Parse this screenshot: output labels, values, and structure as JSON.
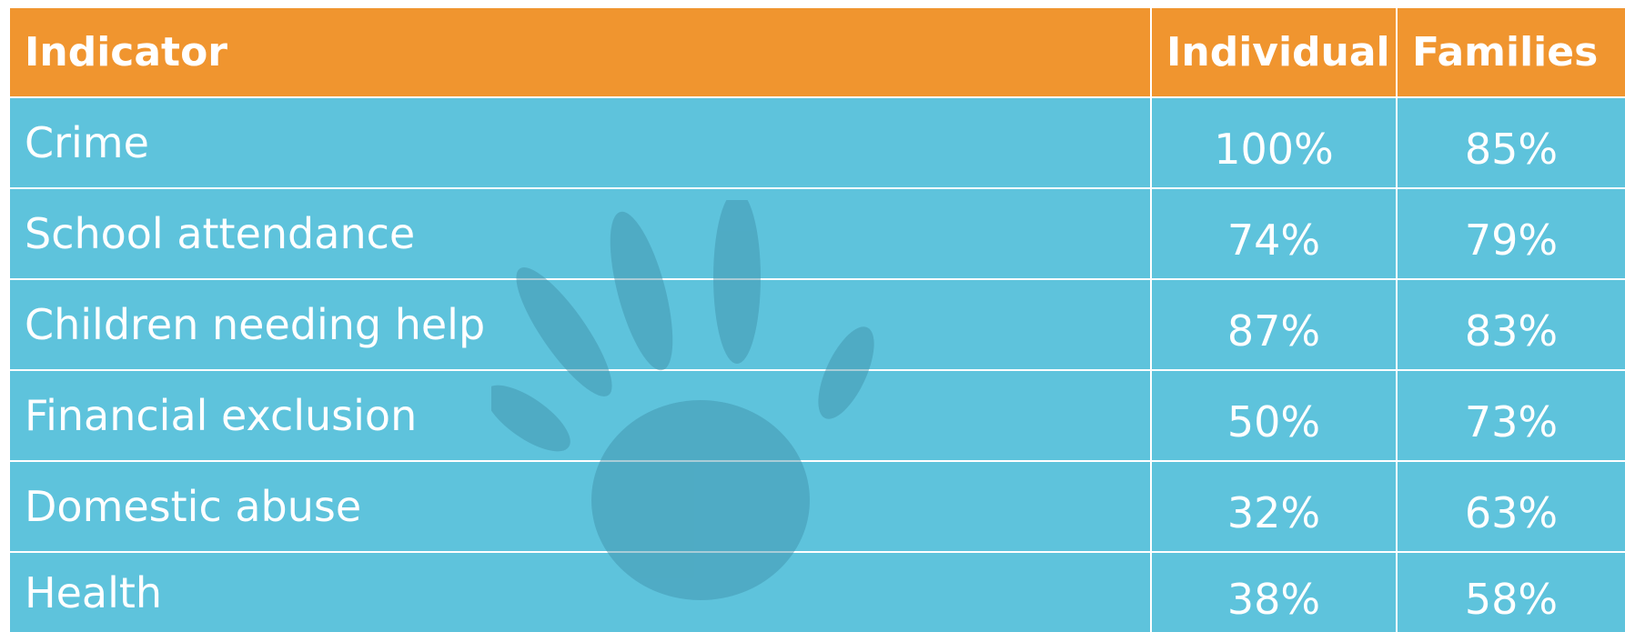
{
  "table": {
    "header": [
      "Indicator",
      "Individual",
      "Families"
    ],
    "rows": [
      [
        "Crime",
        "100%",
        "85%"
      ],
      [
        "School attendance",
        "74%",
        "79%"
      ],
      [
        "Children needing help",
        "87%",
        "83%"
      ],
      [
        "Financial exclusion",
        "50%",
        "73%"
      ],
      [
        "Domestic abuse",
        "32%",
        "63%"
      ],
      [
        "Health",
        "38%",
        "58%"
      ]
    ]
  }
}
